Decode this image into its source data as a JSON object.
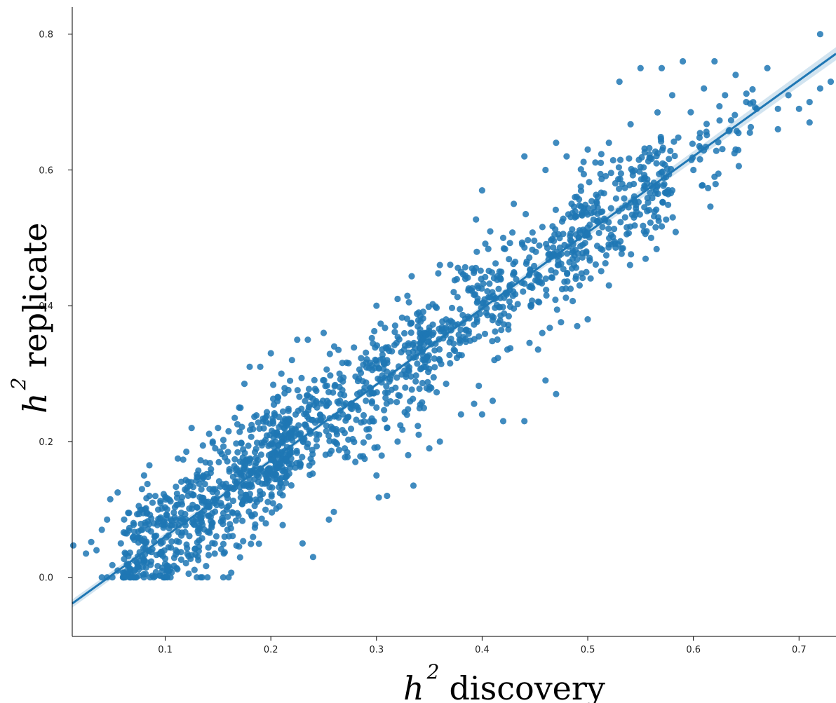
{
  "chart_data": {
    "type": "scatter",
    "title": "",
    "xlabel": {
      "base": "h",
      "sup": "2",
      "text": "discovery"
    },
    "ylabel": {
      "base": "h",
      "sup": "2",
      "text": "replicate"
    },
    "xlim": [
      0.012,
      0.735
    ],
    "ylim": [
      -0.087,
      0.84
    ],
    "xticks": [
      "0.1",
      "0.2",
      "0.3",
      "0.4",
      "0.5",
      "0.6",
      "0.7"
    ],
    "yticks": [
      "0.0",
      "0.2",
      "0.4",
      "0.6",
      "0.8"
    ],
    "xtick_values": [
      0.1,
      0.2,
      0.3,
      0.4,
      0.5,
      0.6,
      0.7
    ],
    "ytick_values": [
      0.0,
      0.2,
      0.4,
      0.6,
      0.8
    ],
    "regression": {
      "slope": 1.12,
      "intercept": -0.052
    },
    "grid": false,
    "legend": "none",
    "n_points": 1800,
    "color": "#1f77b4",
    "points": [
      [
        0.013,
        0.047
      ],
      [
        0.025,
        0.035
      ],
      [
        0.03,
        0.052
      ],
      [
        0.035,
        0.04
      ],
      [
        0.04,
        0.0
      ],
      [
        0.045,
        0.0
      ],
      [
        0.05,
        0.0
      ],
      [
        0.055,
        0.01
      ],
      [
        0.06,
        0.0
      ],
      [
        0.05,
        0.018
      ],
      [
        0.04,
        0.07
      ],
      [
        0.045,
        0.085
      ],
      [
        0.048,
        0.115
      ],
      [
        0.055,
        0.125
      ],
      [
        0.058,
        0.05
      ],
      [
        0.062,
        0.065
      ],
      [
        0.065,
        0.095
      ],
      [
        0.07,
        0.08
      ],
      [
        0.075,
        0.105
      ],
      [
        0.078,
        0.13
      ],
      [
        0.08,
        0.15
      ],
      [
        0.085,
        0.165
      ],
      [
        0.088,
        0.11
      ],
      [
        0.09,
        0.06
      ],
      [
        0.095,
        0.035
      ],
      [
        0.1,
        0.0
      ],
      [
        0.105,
        0.0
      ],
      [
        0.1,
        0.02
      ],
      [
        0.11,
        0.04
      ],
      [
        0.112,
        0.175
      ],
      [
        0.12,
        0.185
      ],
      [
        0.125,
        0.22
      ],
      [
        0.13,
        0.0
      ],
      [
        0.135,
        0.0
      ],
      [
        0.14,
        0.0
      ],
      [
        0.145,
        0.2
      ],
      [
        0.15,
        0.22
      ],
      [
        0.155,
        0.0
      ],
      [
        0.16,
        0.0
      ],
      [
        0.16,
        0.215
      ],
      [
        0.17,
        0.25
      ],
      [
        0.175,
        0.285
      ],
      [
        0.18,
        0.31
      ],
      [
        0.19,
        0.31
      ],
      [
        0.2,
        0.33
      ],
      [
        0.21,
        0.3
      ],
      [
        0.22,
        0.32
      ],
      [
        0.225,
        0.35
      ],
      [
        0.235,
        0.35
      ],
      [
        0.24,
        0.03
      ],
      [
        0.23,
        0.05
      ],
      [
        0.255,
        0.085
      ],
      [
        0.25,
        0.36
      ],
      [
        0.26,
        0.34
      ],
      [
        0.265,
        0.3
      ],
      [
        0.28,
        0.17
      ],
      [
        0.3,
        0.15
      ],
      [
        0.31,
        0.12
      ],
      [
        0.335,
        0.135
      ],
      [
        0.3,
        0.4
      ],
      [
        0.32,
        0.41
      ],
      [
        0.34,
        0.39
      ],
      [
        0.36,
        0.46
      ],
      [
        0.38,
        0.45
      ],
      [
        0.4,
        0.57
      ],
      [
        0.42,
        0.5
      ],
      [
        0.43,
        0.55
      ],
      [
        0.44,
        0.62
      ],
      [
        0.46,
        0.6
      ],
      [
        0.47,
        0.64
      ],
      [
        0.48,
        0.62
      ],
      [
        0.5,
        0.63
      ],
      [
        0.52,
        0.64
      ],
      [
        0.53,
        0.73
      ],
      [
        0.55,
        0.75
      ],
      [
        0.57,
        0.75
      ],
      [
        0.59,
        0.76
      ],
      [
        0.62,
        0.76
      ],
      [
        0.64,
        0.74
      ],
      [
        0.61,
        0.72
      ],
      [
        0.58,
        0.71
      ],
      [
        0.63,
        0.71
      ],
      [
        0.64,
        0.63
      ],
      [
        0.66,
        0.69
      ],
      [
        0.67,
        0.75
      ],
      [
        0.68,
        0.69
      ],
      [
        0.69,
        0.71
      ],
      [
        0.7,
        0.69
      ],
      [
        0.71,
        0.67
      ],
      [
        0.72,
        0.8
      ],
      [
        0.73,
        0.73
      ],
      [
        0.72,
        0.72
      ],
      [
        0.71,
        0.7
      ],
      [
        0.68,
        0.66
      ],
      [
        0.65,
        0.7
      ],
      [
        0.6,
        0.6
      ],
      [
        0.62,
        0.59
      ],
      [
        0.58,
        0.57
      ],
      [
        0.56,
        0.5
      ],
      [
        0.54,
        0.46
      ],
      [
        0.52,
        0.43
      ],
      [
        0.5,
        0.38
      ],
      [
        0.49,
        0.37
      ],
      [
        0.47,
        0.27
      ],
      [
        0.46,
        0.29
      ],
      [
        0.44,
        0.23
      ],
      [
        0.42,
        0.23
      ],
      [
        0.41,
        0.26
      ],
      [
        0.4,
        0.24
      ],
      [
        0.38,
        0.24
      ],
      [
        0.36,
        0.2
      ],
      [
        0.35,
        0.19
      ],
      [
        0.34,
        0.21
      ],
      [
        0.33,
        0.18
      ],
      [
        0.32,
        0.2
      ],
      [
        0.31,
        0.22
      ],
      [
        0.3,
        0.25
      ],
      [
        0.29,
        0.26
      ],
      [
        0.27,
        0.19
      ],
      [
        0.26,
        0.2
      ]
    ]
  }
}
